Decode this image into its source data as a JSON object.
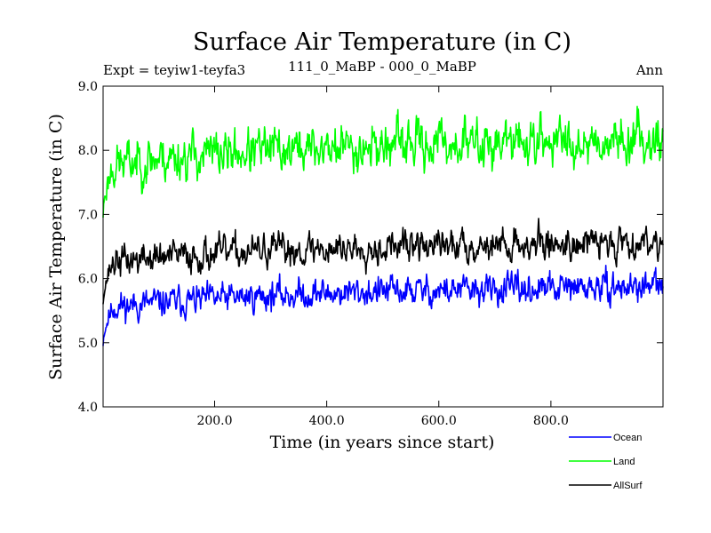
{
  "chart_data": {
    "type": "line",
    "title": "Surface Air Temperature (in C)",
    "subtitle_left": "Expt = teyiw1-teyfa3",
    "subtitle_center": "111_0_MaBP - 000_0_MaBP",
    "subtitle_right": "Ann",
    "xlabel": "Time (in years since start)",
    "ylabel": "Surface Air Temperature (in C)",
    "xlim": [
      1,
      1000
    ],
    "ylim": [
      4.0,
      9.0
    ],
    "x_ticks": [
      200,
      400,
      600,
      800
    ],
    "x_tick_labels": [
      "200.0",
      "400.0",
      "600.0",
      "800.0"
    ],
    "y_ticks": [
      4,
      5,
      6,
      7,
      8,
      9
    ],
    "y_tick_labels": [
      "4.0",
      "5.0",
      "6.0",
      "7.0",
      "8.0",
      "9.0"
    ],
    "n_points": 1000,
    "series": [
      {
        "name": "Ocean",
        "color": "#0000ff",
        "start_value": 4.95,
        "spinup_years": 18,
        "trend": [
          [
            1,
            5.55
          ],
          [
            100,
            5.62
          ],
          [
            300,
            5.74
          ],
          [
            500,
            5.8
          ],
          [
            700,
            5.82
          ],
          [
            900,
            5.86
          ],
          [
            1000,
            5.88
          ]
        ],
        "noise_amplitude": 0.13,
        "seed": 11
      },
      {
        "name": "Land",
        "color": "#00ff00",
        "start_value": 6.95,
        "spinup_years": 18,
        "trend": [
          [
            1,
            7.75
          ],
          [
            100,
            7.88
          ],
          [
            300,
            8.0
          ],
          [
            500,
            8.08
          ],
          [
            700,
            8.12
          ],
          [
            900,
            8.16
          ],
          [
            1000,
            8.2
          ]
        ],
        "noise_amplitude": 0.2,
        "seed": 23
      },
      {
        "name": "AllSurf",
        "color": "#000000",
        "start_value": 5.6,
        "spinup_years": 18,
        "trend": [
          [
            1,
            6.25
          ],
          [
            100,
            6.33
          ],
          [
            300,
            6.44
          ],
          [
            500,
            6.5
          ],
          [
            700,
            6.53
          ],
          [
            900,
            6.56
          ],
          [
            1000,
            6.6
          ]
        ],
        "noise_amplitude": 0.14,
        "seed": 37
      }
    ],
    "legend_position": "bottom-right"
  }
}
